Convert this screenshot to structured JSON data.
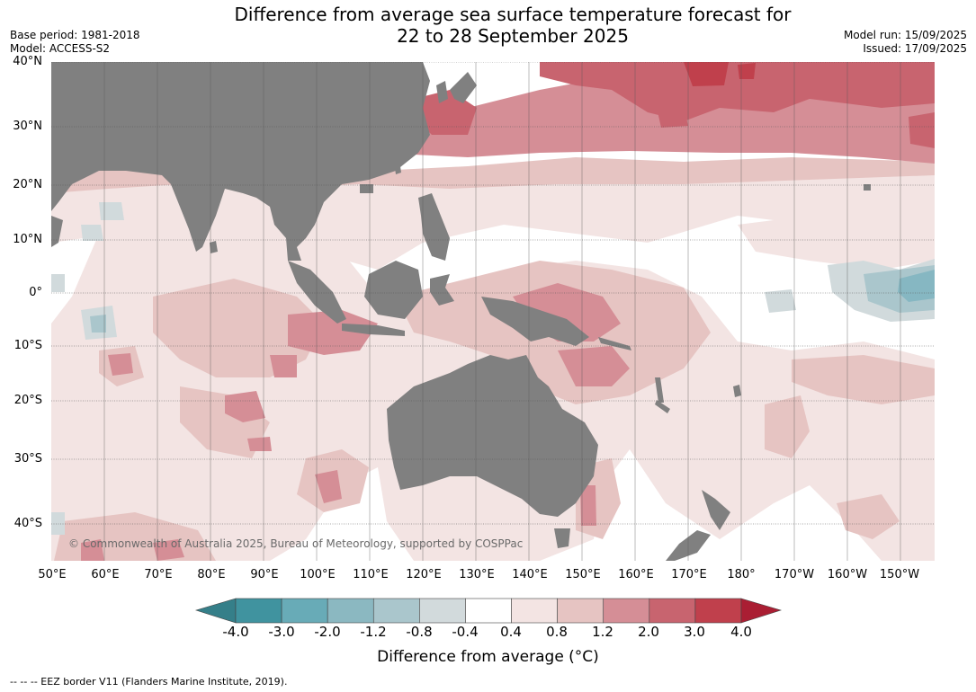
{
  "header": {
    "title_line1": "Difference from average sea surface temperature forecast for",
    "title_line2": "22 to 28 September 2025",
    "base_period": "Base period: 1981-2018",
    "model": "Model: ACCESS-S2",
    "model_run": "Model run: 15/09/2025",
    "issued": "Issued: 17/09/2025"
  },
  "map": {
    "copyright": "© Commonwealth of Australia 2025, Bureau of Meteorology, supported by COSPPac",
    "lat_labels": [
      "40°N",
      "30°N",
      "20°N",
      "10°N",
      "0°",
      "10°S",
      "20°S",
      "30°S",
      "40°S"
    ],
    "lon_labels": [
      "50°E",
      "60°E",
      "70°E",
      "80°E",
      "90°E",
      "100°E",
      "110°E",
      "120°E",
      "130°E",
      "140°E",
      "150°E",
      "160°E",
      "170°E",
      "180°",
      "170°W",
      "160°W",
      "150°W"
    ],
    "colors": {
      "land": "#808080",
      "very_warm": "#c0404c",
      "warm": "#c8646f",
      "moderate_warm": "#d58e96",
      "mild_warm": "#e6c4c2",
      "slight_warm": "#f3e4e3",
      "neutral": "#ffffff",
      "slight_cool": "#d1dadc",
      "mild_cool": "#a8c5cb",
      "cool": "#86b7c2"
    }
  },
  "colorbar": {
    "ticks": [
      "-4.0",
      "-3.0",
      "-2.0",
      "-1.2",
      "-0.8",
      "-0.4",
      "0.4",
      "0.8",
      "1.2",
      "2.0",
      "3.0",
      "4.0"
    ],
    "colors": [
      "#40939f",
      "#68abb7",
      "#8bb8c1",
      "#aac6cc",
      "#d2dadc",
      "#ffffff",
      "#f3e4e3",
      "#e6c4c2",
      "#d58e96",
      "#c8646f",
      "#c0404c"
    ],
    "under_color": "#357f89",
    "over_color": "#aa1e33",
    "label": "Difference from average (°C)"
  },
  "footnote": "--  --  -- EEZ border V11 (Flanders Marine Institute, 2019)."
}
